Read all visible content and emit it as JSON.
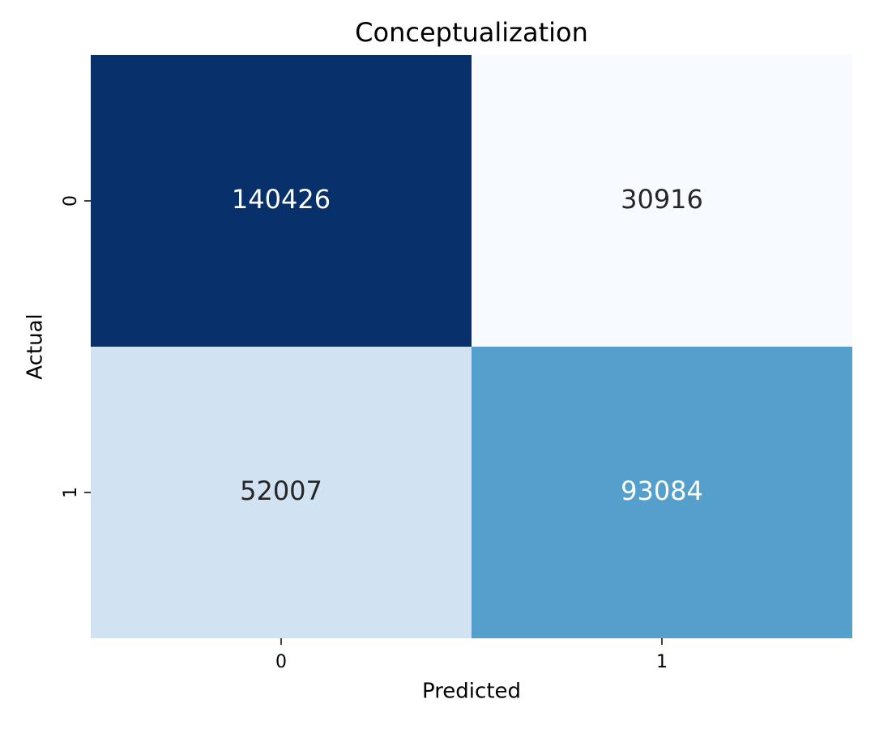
{
  "chart_data": {
    "type": "heatmap",
    "title": "Conceptualization",
    "x_label": "Predicted",
    "y_label": "Actual",
    "x_categories": [
      "0",
      "1"
    ],
    "y_categories": [
      "0",
      "1"
    ],
    "values": [
      [
        140426,
        30916
      ],
      [
        52007,
        93084
      ]
    ],
    "colormap": [
      "#f7fbff",
      "#deebf7",
      "#c6dbef",
      "#9ecae1",
      "#6baed6",
      "#4292c6",
      "#2171b5",
      "#08519c",
      "#08306b"
    ]
  }
}
